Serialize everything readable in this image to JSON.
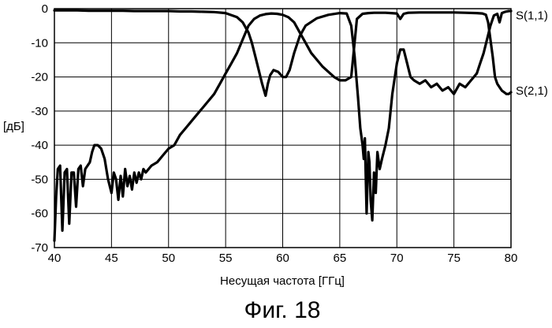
{
  "figure_caption": "Фиг. 18",
  "chart_data": {
    "type": "line",
    "title": "",
    "xlabel": "Несущая частота [ГГц]",
    "ylabel": "[дБ]",
    "xlim": [
      40,
      80
    ],
    "ylim": [
      -70,
      0
    ],
    "xticks": [
      40,
      45,
      50,
      55,
      60,
      65,
      70,
      75,
      80
    ],
    "yticks": [
      0,
      -10,
      -20,
      -30,
      -40,
      -50,
      -60,
      -70
    ],
    "grid": true,
    "legend": "series labels at right edge",
    "series": [
      {
        "name": "S(1,1)",
        "x": [
          40,
          41,
          42,
          43,
          44,
          45,
          46,
          47,
          48,
          49,
          50,
          51,
          52,
          53,
          54,
          55,
          56,
          56.5,
          57,
          57.3,
          57.6,
          57.9,
          58.2,
          58.5,
          58.7,
          58.9,
          59.2,
          59.6,
          60,
          60.3,
          60.6,
          61,
          61.5,
          62,
          63,
          64,
          65,
          65.6,
          66,
          66.3,
          66.6,
          66.8,
          67,
          67.1,
          67.2,
          67.35,
          67.5,
          67.6,
          67.7,
          67.85,
          68,
          68.15,
          68.3,
          68.5,
          68.7,
          69,
          69.3,
          69.6,
          70,
          70.3,
          70.6,
          70.9,
          71.2,
          71.5,
          72,
          72.5,
          73,
          73.5,
          74,
          74.5,
          75,
          75.5,
          76,
          76.5,
          77,
          77.3,
          77.6,
          77.9,
          78.2,
          78.5,
          78.8,
          79,
          79.2,
          79.5,
          79.8,
          80
        ],
        "values": [
          -0.5,
          -0.5,
          -0.5,
          -0.6,
          -0.6,
          -0.6,
          -0.6,
          -0.7,
          -0.7,
          -0.7,
          -0.7,
          -0.8,
          -0.8,
          -0.9,
          -1,
          -1.3,
          -2.5,
          -4,
          -7,
          -10,
          -14,
          -18,
          -22,
          -25.5,
          -22,
          -19.5,
          -18,
          -18.5,
          -20,
          -20,
          -18,
          -13,
          -8,
          -5,
          -2.8,
          -1.8,
          -1.3,
          -1.4,
          -5,
          -14,
          -26,
          -35,
          -40,
          -44,
          -38,
          -60,
          -42,
          -45,
          -56,
          -62,
          -48,
          -54,
          -42,
          -47,
          -44,
          -40,
          -35,
          -25,
          -16,
          -12,
          -12,
          -16,
          -20,
          -21,
          -22,
          -21,
          -23,
          -22,
          -24,
          -23,
          -25,
          -22,
          -23,
          -21,
          -19,
          -16,
          -13,
          -9,
          -5,
          -2,
          -1.5,
          -4,
          -1.3,
          -0.9,
          -0.7,
          -0.7
        ],
        "label_y": -2
      },
      {
        "name": "S(2,1)",
        "x": [
          40,
          40.15,
          40.3,
          40.5,
          40.7,
          40.9,
          41.1,
          41.3,
          41.5,
          41.7,
          41.9,
          42.1,
          42.3,
          42.5,
          42.7,
          42.9,
          43.1,
          43.3,
          43.5,
          43.8,
          44.1,
          44.4,
          44.7,
          45,
          45.2,
          45.4,
          45.6,
          45.8,
          46,
          46.2,
          46.4,
          46.6,
          46.8,
          47,
          47.2,
          47.4,
          47.6,
          47.8,
          48,
          48.5,
          49,
          49.5,
          50,
          50.5,
          51,
          51.5,
          52,
          52.5,
          53,
          53.5,
          54,
          54.5,
          55,
          55.5,
          56,
          56.5,
          57,
          57.5,
          58,
          58.5,
          59,
          59.5,
          60,
          60.5,
          61,
          61.5,
          62,
          62.5,
          63,
          63.5,
          64,
          64.5,
          65,
          65.5,
          66,
          66.5,
          67,
          67.5,
          68,
          68.5,
          69,
          69.5,
          70,
          70.3,
          70.6,
          71,
          72,
          73,
          74,
          75,
          76,
          77,
          77.5,
          77.8,
          78,
          78.2,
          78.4,
          78.6,
          78.8,
          79,
          79.2,
          79.4,
          79.6,
          79.8,
          80
        ],
        "values": [
          -68,
          -55,
          -47,
          -46,
          -65,
          -48,
          -47,
          -63,
          -48,
          -48,
          -58,
          -47,
          -46,
          -52,
          -47,
          -46,
          -45,
          -42,
          -40,
          -40,
          -41,
          -44,
          -50,
          -54,
          -48,
          -50,
          -56,
          -49,
          -55,
          -47,
          -52,
          -49,
          -53,
          -48,
          -51,
          -48,
          -50,
          -47,
          -48,
          -46,
          -45,
          -43,
          -41,
          -40,
          -37,
          -35,
          -33,
          -31,
          -29,
          -27,
          -25,
          -22,
          -19,
          -16,
          -13,
          -9,
          -5,
          -3,
          -2,
          -1.6,
          -1.4,
          -1.5,
          -1.8,
          -2.5,
          -4,
          -7,
          -10,
          -13,
          -15,
          -17,
          -18.5,
          -20,
          -21,
          -21,
          -20,
          -3,
          -1.5,
          -1.3,
          -1.2,
          -1.2,
          -1.2,
          -1.3,
          -1.4,
          -3,
          -1.5,
          -1.2,
          -1.1,
          -1.1,
          -1.1,
          -1.1,
          -1.2,
          -1.3,
          -1.4,
          -1.8,
          -4,
          -9,
          -14,
          -20,
          -22,
          -23,
          -24,
          -24.5,
          -25,
          -25,
          -24.5
        ],
        "label_y": -24
      }
    ]
  }
}
